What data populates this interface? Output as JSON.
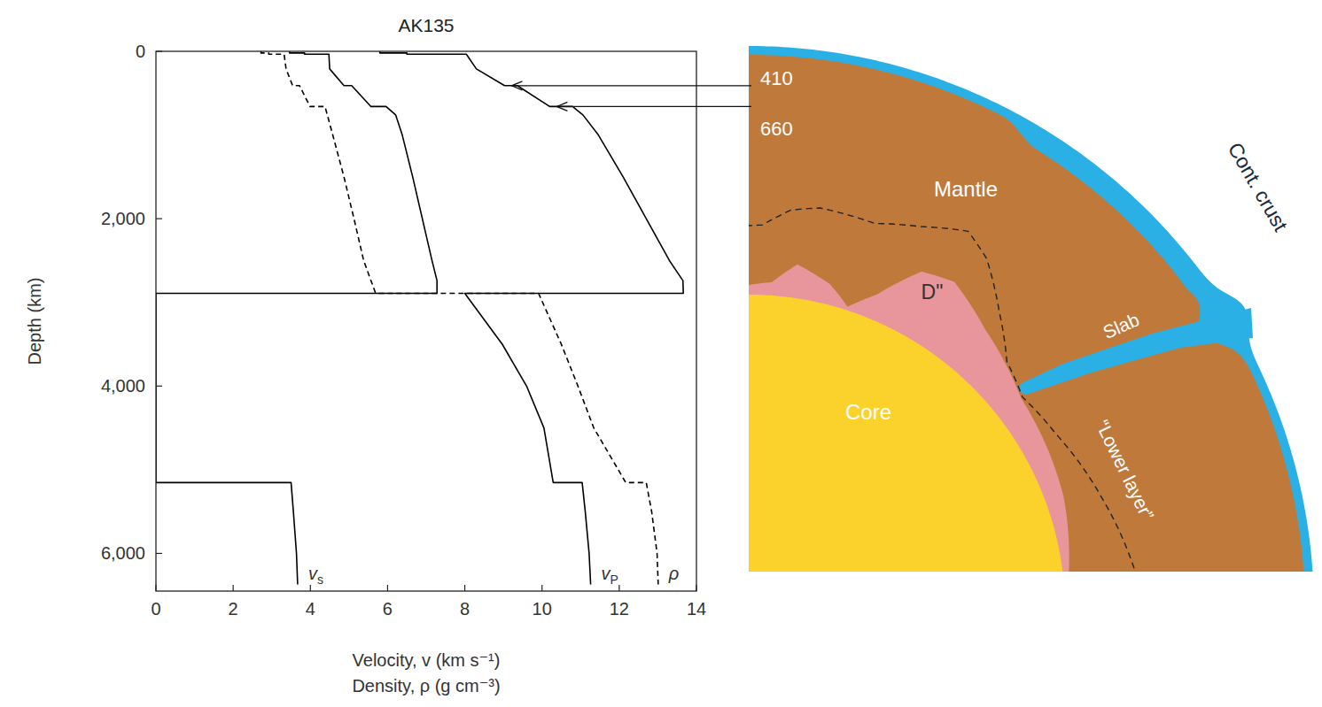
{
  "chart_data": {
    "type": "line",
    "title": "AK135",
    "xlabel": "Velocity, v (km s⁻¹)",
    "xlabel2": "Density, ρ (g cm⁻³)",
    "ylabel": "Depth (km)",
    "xlim": [
      0,
      14
    ],
    "xticks": [
      0,
      2,
      4,
      6,
      8,
      10,
      12,
      14
    ],
    "ylim": [
      0,
      6450
    ],
    "yticks": [
      0,
      {
        "value": 2000,
        "label": "2,000"
      },
      {
        "value": 4000,
        "label": "4,000"
      },
      {
        "value": 6000,
        "label": "6,000"
      }
    ],
    "series": [
      {
        "name": "vs",
        "color": "#000000",
        "line_style": "solid",
        "depth": [
          0,
          20,
          20,
          35,
          35,
          210,
          410,
          410,
          660,
          660,
          760,
          1000,
          1500,
          2000,
          2500,
          2740,
          2891.5,
          2891.5,
          5153.5,
          5153.5,
          5500,
          6000,
          6371
        ],
        "values": [
          3.46,
          3.46,
          3.85,
          3.85,
          4.48,
          4.5,
          4.87,
          5.07,
          5.57,
          5.96,
          6.21,
          6.38,
          6.65,
          6.9,
          7.15,
          7.28,
          7.28,
          0,
          0,
          3.5,
          3.56,
          3.64,
          3.67
        ]
      },
      {
        "name": "vP",
        "color": "#000000",
        "line_style": "solid",
        "depth": [
          0,
          20,
          20,
          35,
          35,
          210,
          410,
          410,
          660,
          660,
          760,
          1000,
          1500,
          2000,
          2500,
          2740,
          2891.5,
          2891.5,
          3500,
          4000,
          4500,
          5153.5,
          5153.5,
          5500,
          6000,
          6371
        ],
        "values": [
          5.8,
          5.8,
          6.5,
          6.5,
          8.04,
          8.3,
          9.03,
          9.36,
          10.2,
          10.79,
          11.06,
          11.46,
          12.1,
          12.7,
          13.3,
          13.65,
          13.66,
          8.0,
          8.97,
          9.6,
          10.05,
          10.29,
          11.04,
          11.12,
          11.22,
          11.26
        ]
      },
      {
        "name": "ρ",
        "color": "#000000",
        "line_style": "dashed",
        "depth": [
          0,
          20,
          20,
          35,
          35,
          210,
          410,
          410,
          660,
          660,
          1000,
          1500,
          2000,
          2500,
          2891.5,
          2891.5,
          3500,
          4000,
          4500,
          5153.5,
          5153.5,
          5500,
          6000,
          6371
        ],
        "values": [
          2.72,
          2.72,
          2.92,
          2.92,
          3.32,
          3.37,
          3.54,
          3.72,
          3.99,
          4.38,
          4.58,
          4.87,
          5.13,
          5.38,
          5.69,
          9.91,
          10.5,
          10.93,
          11.34,
          12.17,
          12.7,
          12.84,
          12.98,
          13.01
        ]
      }
    ],
    "annotations": [
      {
        "text": "410",
        "value": 410
      },
      {
        "text": "660",
        "value": 660
      }
    ]
  },
  "diagram": {
    "labels": {
      "mantle": "Mantle",
      "crust": "Cont. crust",
      "slab": "Slab",
      "dpp": "D\"",
      "core": "Core",
      "lower": "“Lower layer”"
    }
  }
}
